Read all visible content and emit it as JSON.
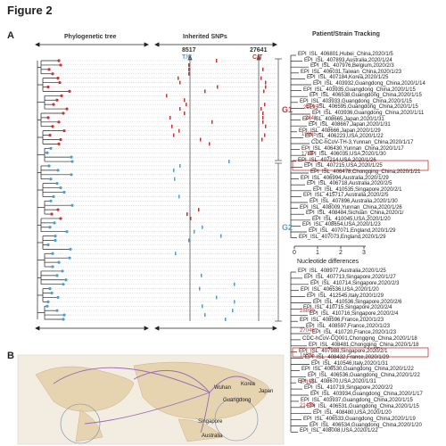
{
  "figure": {
    "title": "Figure 2",
    "panel_a": "A",
    "panel_b": "B"
  },
  "headers": {
    "tree": "Phylogenetic tree",
    "snps": "Inherited SNPs",
    "tracking": "Patient/Strain Tracking"
  },
  "snps": {
    "pos1": "8517",
    "allele1": "T/C",
    "pos2": "27641",
    "allele2": "C/T"
  },
  "groups": {
    "g1": "G1",
    "g2": "G2"
  },
  "axis": {
    "ticks": [
      "0",
      "1",
      "2",
      "3"
    ],
    "label": "Nucleotide differences"
  },
  "strains_top": [
    "EPI_ISL_406801,Hubei_China,2020/1/5",
    "EPI_ISL_407893,Australia,2020/1/24",
    "EPI_ISL_407976,Belgium,2020/2/3",
    "EPI_ISL_406031,Taiwan_China,2020/1/23",
    "EPI_ISL_407184,Korea,2020/1/25",
    "EPI_ISL_403932,Guangdong_China,2020/1/14",
    "EPI_ISL_403935,Guangdong_China,2020/1/15",
    "EPI_ISL_406538,Guangdong_China,2020/1/15",
    "EPI_ISL_403933,Guangdong_China,2020/1/15",
    "EPI_ISL_406595,Guangdong_China,2020/1/15",
    "EPI_ISL_403936,Guangdong_China,2020/1/11",
    "EPI_ISL_408665,Japan,2020/1/31",
    "EPI_ISL_408667,Japan,2020/1/31",
    "EPI_ISL_408666,Japan,2020/1/29",
    "EPI_ISL_406223,USA,2020/1/22",
    "CDC-hCoV-TH-3,Yunnan_China,2020/1/17",
    "EPI_ISL_406430,Yunnan_China,2020/1/17",
    "EPI_ISL_406035,USA,2020/1/30",
    "EPI_ISL_407214,USA,2020/1/26",
    "EPI_ISL_407215,USA,2020/1/25",
    "EPI_ISL_406478,Chongqing_China,2020/1/21",
    "EPI_ISL_406994,Australia,2020/1/29",
    "EPI_ISL_406718,Australia,2020/2/5",
    "EPI_ISL_410535,Singapore,2020/2/1",
    "EPI_ISL_415717,Australia,2020/2/5",
    "EPI_ISL_407896,Australia,2020/1/30",
    "EPI_ISL_408009,Yunnan_China,2020/1/26",
    "EPI_ISL_408484,Sichuan_China,2020/1/",
    "EPI_ISL_410045,USA,2020/1/20",
    "EPI_ISL_408654,USA,2020/1/23",
    "EPI_ISL_407071,England,2020/1/29",
    "EPI_ISL_407073,England,2020/1/29"
  ],
  "strains_bottom": [
    "EPI_ISL_408977,Australia,2020/1/25",
    "EPI_ISL_407713,Singapore,2020/1/27",
    "EPI_ISL_410714,Singapore,2020/2/3",
    "EPI_ISL_406536,USA,2020/1/20",
    "EPI_ISL_412545,Italy,2020/1/29",
    "EPI_ISL_410536,Singapore,2020/2/6",
    "EPI_ISL_410715,Singapore,2020/2/4",
    "EPI_ISL_410716,Singapore,2020/2/4",
    "EPI_ISL_408596,France,2020/1/23",
    "EPI_ISL_408597,France,2020/1/23",
    "EPI_ISL_410720,France,2020/1/23",
    "CDC-hCoV-CQ001,Chongqing_China,2020/1/18",
    "EPI_ISL_408481,Chongqing_China,2020/1/18",
    "EPI_ISL_407988,Singapore,2020/2/1",
    "EPI_ISL_408432,France,2020/1/29",
    "EPI_ISL_410546,Italy,2020/1/31",
    "EPI_ISL_406530,Guangdong_China,2020/1/22",
    "EPI_ISL_406536,Guangdong_China,2020/1/22",
    "EPI_ISL_408670,USA,2020/1/31",
    "EPI_ISL_410719,Singapore,2020/2/2",
    "EPI_ISL_403934,Guangdong_China,2020/1/17",
    "EPI_ISL_403937,Guangdong_China,2020/1/15",
    "EPI_ISL_406531,Guangdong_China,2020/1/15",
    "EPI_ISL_408480,USA,2020/1/20",
    "EPI_ISL_406533,Guangdong_China,2020/1/19",
    "EPI_ISL_406534,Guangdong_China,2020/1/20",
    "EPI_ISL_408008,USA,2020/1/22"
  ],
  "branch_labels_top": [
    "29195",
    "2441",
    "19065",
    "1788"
  ],
  "branch_labels_bottom": [
    "28895",
    "27046",
    "16535",
    "17155",
    "21436"
  ],
  "map": {
    "cities": [
      "Korea",
      "Japan",
      "Singapore",
      "Wuhan",
      "Guangdong",
      "Australia"
    ]
  },
  "colors": {
    "red": "#d03030",
    "blue": "#4a9fd0",
    "gray": "#888888"
  }
}
